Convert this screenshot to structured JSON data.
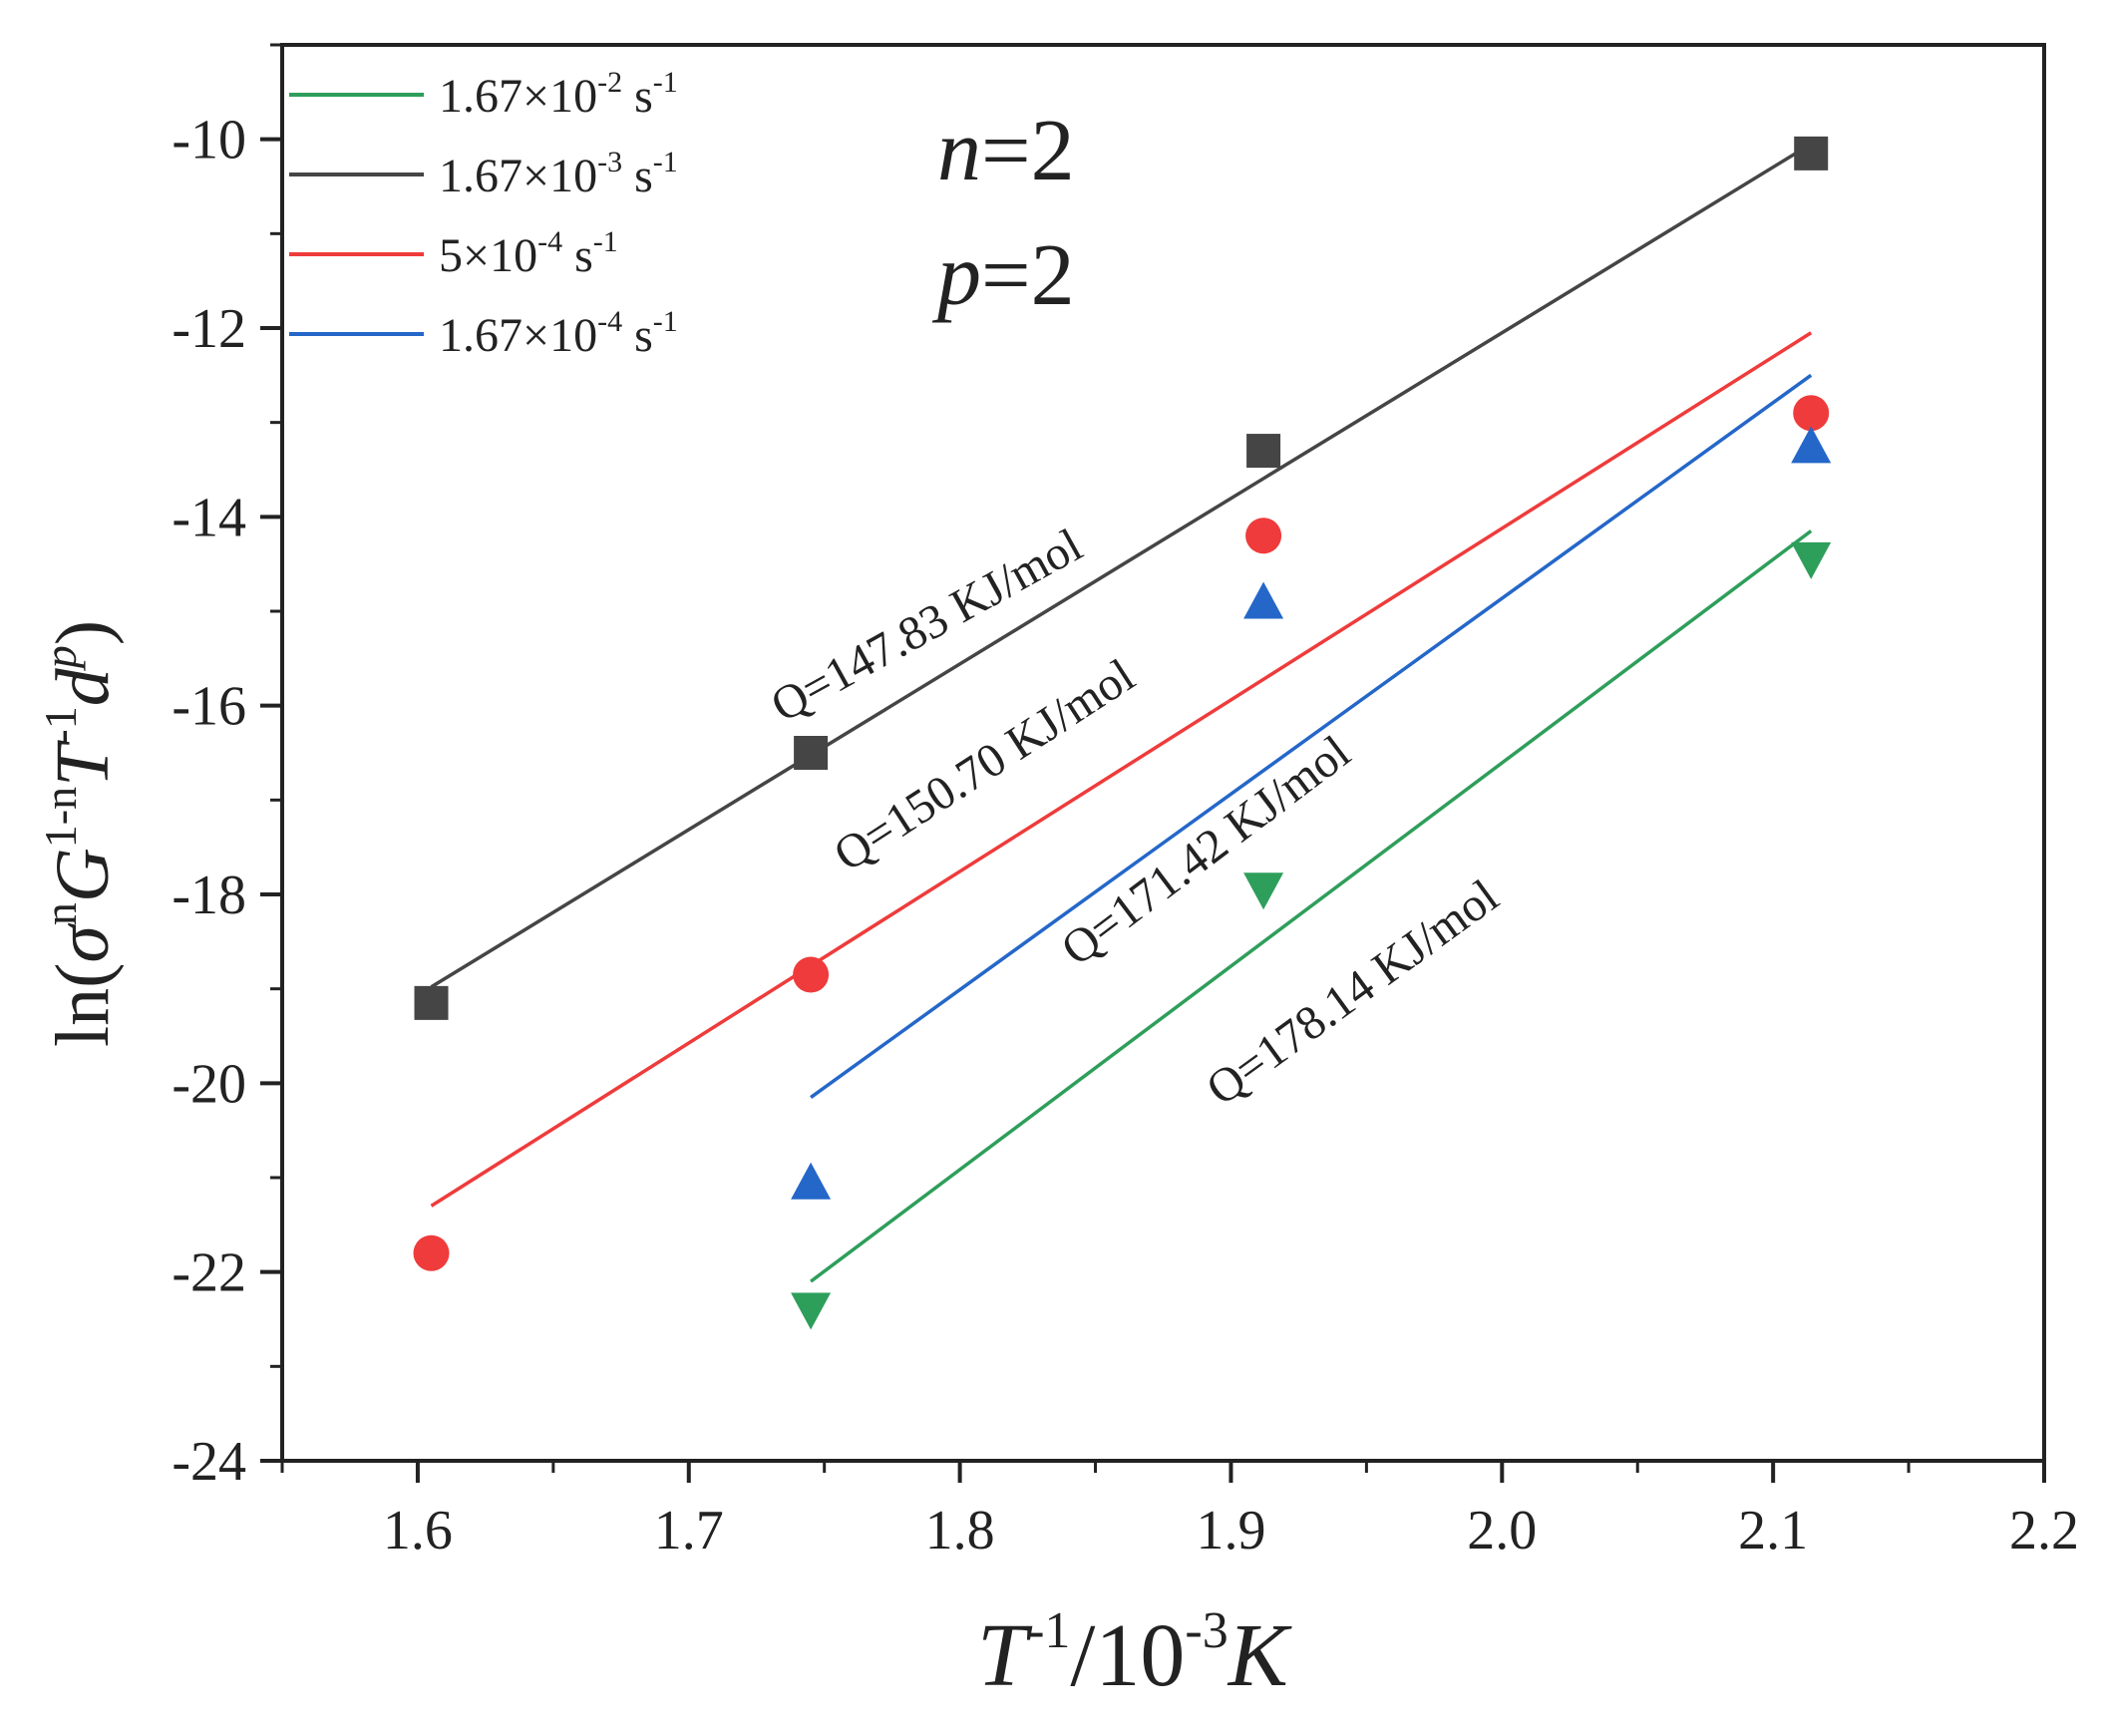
{
  "chart_data": {
    "type": "scatter",
    "title": "",
    "xlabel": {
      "base": "T",
      "sup": "-1",
      "rest": "/10",
      "sup2": "-3",
      "unit": "K"
    },
    "ylabel": {
      "prefix": "ln(",
      "sigma": "σ",
      "sup1": "n",
      "G": "G",
      "sup2": "1-n",
      "T": "T",
      "sup3": "-1",
      "d": "d",
      "sup4": "p",
      "suffix": ")"
    },
    "xlim": [
      1.55,
      2.2
    ],
    "ylim": [
      -24,
      -9
    ],
    "x_ticks": [
      1.6,
      1.7,
      1.8,
      1.9,
      2.0,
      2.1,
      2.2
    ],
    "x_tick_labels": [
      "1.6",
      "1.7",
      "1.8",
      "1.9",
      "2.0",
      "2.1",
      "2.2"
    ],
    "y_ticks": [
      -24,
      -22,
      -20,
      -18,
      -16,
      -14,
      -12,
      -10
    ],
    "y_tick_labels": [
      "-24",
      "-22",
      "-20",
      "-18",
      "-16",
      "-14",
      "-12",
      "-10"
    ],
    "annotations": {
      "n": "n",
      "n_val": "=2",
      "p": "p",
      "p_val": "=2"
    },
    "series": [
      {
        "name": "1.67×10-2 s-1",
        "legend": {
          "mant": "1.67×10",
          "exp": "-2",
          "unit": " s",
          "uexp": "-1"
        },
        "color": "#2e9e5b",
        "marker": "triangle-down",
        "x": [
          1.745,
          1.912,
          2.114
        ],
        "y": [
          -22.4,
          -17.95,
          -14.45
        ],
        "fit": {
          "x": [
            1.745,
            2.114
          ],
          "y": [
            -22.1,
            -14.15
          ]
        },
        "q_label": "Q=178.14 KJ/mol"
      },
      {
        "name": "1.67×10-3 s-1",
        "legend": {
          "mant": "1.67×10",
          "exp": "-3",
          "unit": " s",
          "uexp": "-1"
        },
        "color": "#454545",
        "marker": "square",
        "x": [
          1.605,
          1.745,
          1.912,
          2.114
        ],
        "y": [
          -19.15,
          -16.5,
          -13.3,
          -10.15
        ],
        "fit": {
          "x": [
            1.605,
            2.114
          ],
          "y": [
            -18.98,
            -10.05
          ]
        },
        "q_label": "Q=147.83 KJ/mol"
      },
      {
        "name": "5×10-4 s-1",
        "legend": {
          "mant": "5×10",
          "exp": "-4",
          "unit": " s",
          "uexp": "-1"
        },
        "color": "#ef3b3b",
        "marker": "circle",
        "x": [
          1.605,
          1.745,
          1.912,
          2.114
        ],
        "y": [
          -21.8,
          -18.85,
          -14.2,
          -12.9
        ],
        "fit": {
          "x": [
            1.605,
            2.114
          ],
          "y": [
            -21.3,
            -12.05
          ]
        },
        "q_label": "Q=150.70 KJ/mol"
      },
      {
        "name": "1.67×10-4 s-1",
        "legend": {
          "mant": "1.67×10",
          "exp": "-4",
          "unit": " s",
          "uexp": "-1"
        },
        "color": "#2467c9",
        "marker": "triangle-up",
        "x": [
          1.745,
          1.912,
          2.114
        ],
        "y": [
          -21.05,
          -14.9,
          -13.25
        ],
        "fit": {
          "x": [
            1.745,
            2.114
          ],
          "y": [
            -20.15,
            -12.5
          ]
        },
        "q_label": "Q=171.42 KJ/mol"
      }
    ]
  }
}
